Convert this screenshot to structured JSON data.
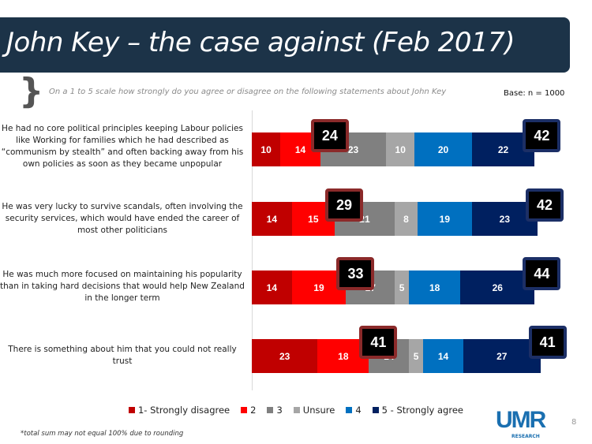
{
  "header": {
    "title": "John Key – the case against (Feb 2017)"
  },
  "subtitle": "On a 1 to 5 scale how strongly do you agree or disagree on the following statements about John Key",
  "base": "Base: n = 1000",
  "footnote": "*total sum may not equal 100% due to rounding",
  "logo": {
    "text": "UMR",
    "sub": "RESEARCH"
  },
  "page_number": "8",
  "chart_data": {
    "type": "bar",
    "orientation": "horizontal-stacked",
    "categories": [
      "He had no core political principles keeping Labour policies like Working for families which he had described as “communism by stealth” and often backing away from his own policies as soon as they became unpopular",
      "He was very lucky to survive scandals, often involving the security services, which would have ended the career of most other politicians",
      "He was much more focused on maintaining his popularity than in taking hard decisions that would help New Zealand in the longer term",
      "There is something about him that you could not really trust"
    ],
    "series": [
      {
        "name": "1- Strongly disagree",
        "color": "#c00000",
        "values": [
          10,
          14,
          14,
          23
        ]
      },
      {
        "name": "2",
        "color": "#ff0000",
        "values": [
          14,
          15,
          19,
          18
        ]
      },
      {
        "name": "3",
        "color": "#808080",
        "values": [
          23,
          21,
          17,
          14
        ]
      },
      {
        "name": "Unsure",
        "color": "#a6a6a6",
        "values": [
          10,
          8,
          5,
          5
        ]
      },
      {
        "name": "4",
        "color": "#0070c0",
        "values": [
          20,
          19,
          18,
          14
        ]
      },
      {
        "name": "5 - Strongly agree",
        "color": "#002060",
        "values": [
          22,
          23,
          26,
          27
        ]
      }
    ],
    "disagree_totals": [
      24,
      29,
      33,
      41
    ],
    "agree_totals": [
      42,
      42,
      44,
      41
    ],
    "legend": "bottom"
  }
}
